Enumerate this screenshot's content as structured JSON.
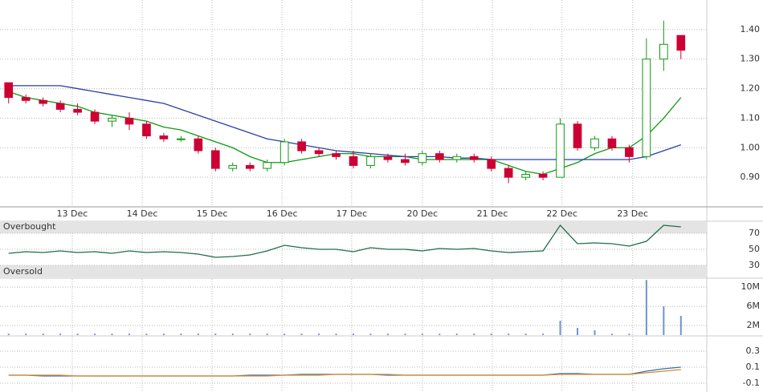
{
  "chart_data": [
    {
      "type": "candlestick",
      "xlim": [
        -0.5,
        40.5
      ],
      "ylim": [
        0.8,
        1.5
      ],
      "xticks": [
        {
          "value": 3.69,
          "label": "13 Dec"
        },
        {
          "value": 7.75,
          "label": "14 Dec"
        },
        {
          "value": 11.8,
          "label": "15 Dec"
        },
        {
          "value": 15.86,
          "label": "16 Dec"
        },
        {
          "value": 19.9,
          "label": "17 Dec"
        },
        {
          "value": 24.0,
          "label": "20 Dec"
        },
        {
          "value": 28.06,
          "label": "21 Dec"
        },
        {
          "value": 32.1,
          "label": "22 Dec"
        },
        {
          "value": 36.2,
          "label": "23 Dec"
        }
      ],
      "yticks": [
        {
          "value": 0.9,
          "label": "0.90"
        },
        {
          "value": 1.0,
          "label": "1.00"
        },
        {
          "value": 1.1,
          "label": "1.10"
        },
        {
          "value": 1.2,
          "label": "1.20"
        },
        {
          "value": 1.3,
          "label": "1.30"
        },
        {
          "value": 1.4,
          "label": "1.40"
        }
      ],
      "up_color": "#119911",
      "down_color": "#cc0033",
      "open": [
        1.22,
        1.17,
        1.16,
        1.15,
        1.13,
        1.12,
        1.09,
        1.1,
        1.08,
        1.04,
        1.03,
        1.03,
        0.99,
        0.93,
        0.94,
        0.93,
        0.95,
        1.02,
        0.99,
        0.98,
        0.97,
        0.94,
        0.97,
        0.96,
        0.95,
        0.98,
        0.96,
        0.97,
        0.96,
        0.93,
        0.9,
        0.91,
        0.9,
        1.08,
        1.0,
        1.03,
        1.0,
        0.97,
        1.3,
        1.38
      ],
      "high": [
        1.22,
        1.18,
        1.17,
        1.16,
        1.15,
        1.13,
        1.11,
        1.12,
        1.09,
        1.05,
        1.04,
        1.04,
        1.0,
        0.95,
        0.95,
        0.96,
        1.03,
        1.03,
        1.0,
        0.99,
        0.99,
        0.98,
        0.98,
        0.98,
        0.99,
        0.99,
        0.98,
        0.98,
        0.97,
        0.94,
        0.92,
        0.92,
        1.1,
        1.09,
        1.04,
        1.04,
        1.01,
        1.37,
        1.43,
        1.38
      ],
      "low": [
        1.15,
        1.15,
        1.14,
        1.12,
        1.11,
        1.08,
        1.07,
        1.06,
        1.03,
        1.02,
        1.02,
        0.98,
        0.92,
        0.92,
        0.92,
        0.92,
        0.94,
        0.98,
        0.97,
        0.96,
        0.93,
        0.93,
        0.95,
        0.94,
        0.94,
        0.95,
        0.95,
        0.95,
        0.92,
        0.88,
        0.89,
        0.89,
        0.9,
        0.99,
        0.99,
        0.99,
        0.95,
        0.96,
        1.26,
        1.3
      ],
      "close": [
        1.17,
        1.16,
        1.15,
        1.13,
        1.12,
        1.09,
        1.1,
        1.08,
        1.04,
        1.03,
        1.03,
        0.99,
        0.93,
        0.94,
        0.93,
        0.95,
        1.02,
        0.99,
        0.98,
        0.97,
        0.94,
        0.97,
        0.96,
        0.95,
        0.98,
        0.96,
        0.97,
        0.96,
        0.93,
        0.9,
        0.91,
        0.9,
        1.08,
        1.0,
        1.03,
        1.0,
        0.97,
        1.3,
        1.35,
        1.33
      ],
      "series": [
        {
          "color": "#119911",
          "values": [
            1.19,
            1.17,
            1.16,
            1.15,
            1.14,
            1.12,
            1.11,
            1.1,
            1.09,
            1.07,
            1.06,
            1.04,
            1.02,
            1.0,
            0.97,
            0.95,
            0.95,
            0.96,
            0.97,
            0.98,
            0.98,
            0.97,
            0.97,
            0.97,
            0.96,
            0.96,
            0.96,
            0.96,
            0.96,
            0.94,
            0.92,
            0.91,
            0.93,
            0.95,
            0.98,
            1.0,
            1.0,
            1.04,
            1.1,
            1.17
          ]
        },
        {
          "color": "#2c3fa8",
          "values": [
            1.21,
            1.21,
            1.21,
            1.21,
            1.2,
            1.19,
            1.18,
            1.17,
            1.16,
            1.15,
            1.13,
            1.11,
            1.09,
            1.07,
            1.05,
            1.03,
            1.02,
            1.01,
            1.0,
            0.99,
            0.985,
            0.98,
            0.975,
            0.97,
            0.97,
            0.97,
            0.965,
            0.965,
            0.96,
            0.96,
            0.96,
            0.96,
            0.96,
            0.96,
            0.96,
            0.96,
            0.96,
            0.97,
            0.99,
            1.01
          ]
        }
      ]
    },
    {
      "type": "line",
      "ylim": [
        15,
        85
      ],
      "yticks": [
        30,
        50,
        70
      ],
      "bands": [
        {
          "label": "Overbought",
          "range": [
            70,
            85
          ]
        },
        {
          "label": "Oversold",
          "range": [
            15,
            30
          ]
        }
      ],
      "series": [
        {
          "color": "#1f6e4a",
          "values": [
            45,
            47,
            46,
            48,
            46,
            47,
            45,
            48,
            46,
            47,
            46,
            44,
            40,
            41,
            43,
            48,
            55,
            52,
            50,
            50,
            47,
            52,
            50,
            50,
            48,
            51,
            50,
            51,
            48,
            46,
            47,
            48,
            80,
            57,
            58,
            57,
            54,
            60,
            80,
            78
          ]
        }
      ]
    },
    {
      "type": "bar",
      "ylim": [
        0,
        11700000
      ],
      "yticks": [
        {
          "value": 2000000,
          "label": "2M"
        },
        {
          "value": 6000000,
          "label": "6M"
        },
        {
          "value": 10000000,
          "label": "10M"
        }
      ],
      "color": "#6f93cf",
      "values": [
        300000,
        300000,
        300000,
        300000,
        300000,
        300000,
        300000,
        300000,
        300000,
        300000,
        300000,
        300000,
        300000,
        300000,
        300000,
        300000,
        300000,
        300000,
        300000,
        300000,
        300000,
        300000,
        300000,
        300000,
        300000,
        300000,
        300000,
        300000,
        300000,
        300000,
        300000,
        300000,
        3000000,
        1500000,
        1000000,
        300000,
        300000,
        11500000,
        6000000,
        4000000
      ]
    },
    {
      "type": "line",
      "ylim": [
        -0.21,
        0.48
      ],
      "yticks": [
        -0.1,
        0.1,
        0.3
      ],
      "series": [
        {
          "color": "#3a6fb0",
          "values": [
            0,
            0,
            -0.01,
            -0.01,
            -0.01,
            -0.01,
            -0.01,
            -0.01,
            -0.01,
            -0.01,
            -0.01,
            -0.01,
            -0.01,
            -0.01,
            0,
            0,
            0,
            0.01,
            0.01,
            0.01,
            0.01,
            0.01,
            0,
            0,
            0,
            0,
            0,
            0,
            0,
            0,
            0,
            0,
            0.02,
            0.02,
            0.01,
            0.01,
            0.01,
            0.05,
            0.08,
            0.1
          ]
        },
        {
          "color": "#d98a2b",
          "values": [
            0,
            0,
            0,
            0,
            -0.01,
            -0.01,
            -0.01,
            -0.01,
            -0.01,
            -0.01,
            -0.01,
            -0.01,
            -0.01,
            -0.01,
            -0.01,
            -0.01,
            0,
            0,
            0,
            0.01,
            0.01,
            0.01,
            0.01,
            0,
            0,
            0,
            0,
            0,
            0,
            0,
            0,
            0,
            0.01,
            0.01,
            0.01,
            0.01,
            0.01,
            0.03,
            0.05,
            0.07
          ]
        }
      ]
    }
  ]
}
